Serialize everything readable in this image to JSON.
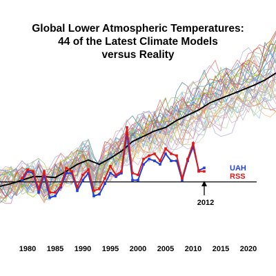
{
  "chart_data": {
    "type": "line",
    "title_lines": [
      "Global Lower Atmospheric Temperatures:",
      "44 of the Latest Climate Models",
      "versus Reality"
    ],
    "x_ticks": [
      "1980",
      "1985",
      "1990",
      "1995",
      "2000",
      "2005",
      "2010",
      "2015",
      "2020"
    ],
    "xlim": [
      1975,
      2025
    ],
    "ylim": [
      -0.6,
      1.6
    ],
    "baseline": 0,
    "grid": false,
    "legend": [
      {
        "label": "UAH",
        "color": "#1f3fd6"
      },
      {
        "label": "RSS",
        "color": "#e01818"
      }
    ],
    "annotation": {
      "label": "2012",
      "x": 2012
    },
    "observed_series": [
      {
        "name": "UAH",
        "color": "#1f3fd6",
        "x": [
          1979,
          1980,
          1981,
          1982,
          1983,
          1984,
          1985,
          1986,
          1987,
          1988,
          1989,
          1990,
          1991,
          1992,
          1993,
          1994,
          1995,
          1996,
          1997,
          1998,
          1999,
          2000,
          2001,
          2002,
          2003,
          2004,
          2005,
          2006,
          2007,
          2008,
          2009,
          2010,
          2011,
          2012
        ],
        "values": [
          0.02,
          0.12,
          0.1,
          -0.12,
          0.08,
          -0.18,
          -0.16,
          -0.06,
          0.1,
          0.1,
          -0.1,
          0.02,
          0.1,
          -0.16,
          -0.14,
          -0.02,
          0.1,
          0.06,
          0.1,
          0.55,
          0.02,
          0.02,
          0.2,
          0.26,
          0.24,
          0.2,
          0.32,
          0.24,
          0.24,
          0.02,
          0.24,
          0.4,
          0.13,
          0.16
        ]
      },
      {
        "name": "RSS",
        "color": "#e01818",
        "x": [
          1979,
          1980,
          1981,
          1982,
          1983,
          1984,
          1985,
          1986,
          1987,
          1988,
          1989,
          1990,
          1991,
          1992,
          1993,
          1994,
          1995,
          1996,
          1997,
          1998,
          1999,
          2000,
          2001,
          2002,
          2003,
          2004,
          2005,
          2006,
          2007,
          2008,
          2009,
          2010,
          2011,
          2012
        ],
        "values": [
          0.04,
          0.14,
          0.12,
          -0.08,
          0.12,
          -0.12,
          -0.12,
          -0.04,
          0.16,
          0.12,
          -0.06,
          0.08,
          0.14,
          -0.1,
          -0.08,
          0.04,
          0.18,
          0.08,
          0.12,
          0.62,
          0.1,
          0.08,
          0.26,
          0.3,
          0.32,
          0.24,
          0.38,
          0.32,
          0.3,
          0.04,
          0.26,
          0.44,
          0.12,
          0.12
        ]
      }
    ],
    "model_mean": {
      "color": "#000000",
      "x": [
        1975,
        1977,
        1979,
        1981,
        1983,
        1985,
        1987,
        1989,
        1991,
        1993,
        1995,
        1997,
        1999,
        2001,
        2003,
        2005,
        2007,
        2009,
        2011,
        2013,
        2015,
        2017,
        2019,
        2021,
        2023,
        2025
      ],
      "values": [
        -0.05,
        -0.02,
        0.02,
        0.06,
        0.06,
        0.05,
        0.12,
        0.2,
        0.25,
        0.2,
        0.27,
        0.35,
        0.46,
        0.52,
        0.58,
        0.62,
        0.7,
        0.76,
        0.82,
        0.9,
        0.95,
        1.0,
        1.05,
        1.1,
        1.16,
        1.24
      ]
    },
    "model_colors": [
      "#6fa8dc",
      "#93c47d",
      "#e06666",
      "#c27ba0",
      "#f6b26b",
      "#76a5af",
      "#8e7cc3",
      "#bcbcbc",
      "#a2c4c9",
      "#b6d7a8",
      "#ea9999",
      "#ffd966",
      "#9fc5e8",
      "#d5a6bd",
      "#b4a7d6",
      "#8fce00",
      "#cc4125",
      "#45818e",
      "#e69138",
      "#3d85c6"
    ],
    "model_count": 44
  }
}
